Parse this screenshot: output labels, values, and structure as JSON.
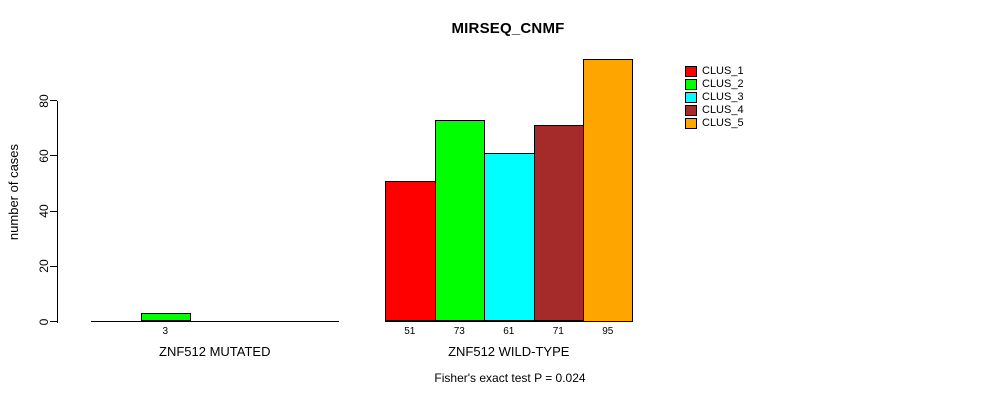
{
  "chart_data": {
    "type": "bar",
    "title": "MIRSEQ_CNMF",
    "ylabel": "number of cases",
    "ylim": [
      0,
      95
    ],
    "yticks": [
      0,
      20,
      40,
      60,
      80
    ],
    "grid": false,
    "legend_position": "right",
    "categories": [
      "ZNF512 MUTATED",
      "ZNF512 WILD-TYPE"
    ],
    "series": [
      {
        "name": "CLUS_1",
        "color": "#FF0000",
        "values": [
          0,
          51
        ]
      },
      {
        "name": "CLUS_2",
        "color": "#00FF00",
        "values": [
          3,
          73
        ]
      },
      {
        "name": "CLUS_3",
        "color": "#00FFFF",
        "values": [
          0,
          61
        ]
      },
      {
        "name": "CLUS_4",
        "color": "#A52A2A",
        "values": [
          0,
          71
        ]
      },
      {
        "name": "CLUS_5",
        "color": "#FFA500",
        "values": [
          0,
          95
        ]
      }
    ],
    "bar_labels": [
      [
        "",
        "3",
        "",
        "",
        ""
      ],
      [
        "51",
        "73",
        "61",
        "71",
        "95"
      ]
    ],
    "annotation": "Fisher's exact test P = 0.024"
  }
}
